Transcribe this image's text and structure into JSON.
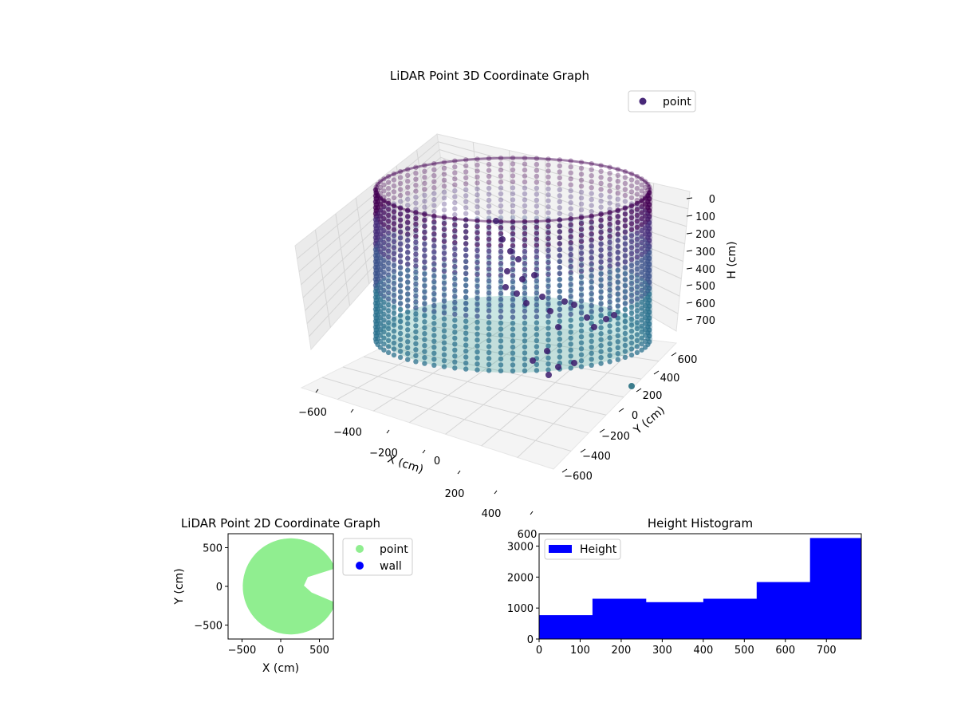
{
  "colors": {
    "viridis_top": "#440154",
    "viridis_mid": "#3b528b",
    "viridis_teal": "#21918c",
    "viridis_green": "#2bb07f",
    "point_2d": "#90ee90",
    "wall_2d": "#0000ff",
    "histogram": "#0000ff",
    "pane": "#f2f2f2"
  },
  "chart_data": [
    {
      "type": "scatter3d",
      "title": "LiDAR Point 3D Coordinate Graph",
      "xlabel": "X (cm)",
      "ylabel": "Y (cm)",
      "zlabel": "H (cm)",
      "xlim": [
        -700,
        700
      ],
      "ylim": [
        -700,
        700
      ],
      "zlim": [
        0,
        780
      ],
      "z_inverted": true,
      "xticks": [
        "−600",
        "−400",
        "−200",
        "0",
        "200",
        "400",
        "600"
      ],
      "yticks": [
        "−600",
        "−400",
        "−200",
        "0",
        "200",
        "400",
        "600"
      ],
      "zticks": [
        "0",
        "100",
        "200",
        "300",
        "400",
        "500",
        "600",
        "700"
      ],
      "legend": [
        "point"
      ],
      "legend_position": "top-right",
      "grid": true,
      "shape": "cylindrical wall of radius ~620 cm, heights 0-780 cm, colored by height",
      "wall_radius": 620,
      "height_range": [
        0,
        780
      ]
    },
    {
      "type": "scatter",
      "title": "LiDAR Point 2D Coordinate Graph",
      "xlabel": "X (cm)",
      "ylabel": "Y (cm)",
      "xlim": [
        -680,
        680
      ],
      "ylim": [
        -680,
        680
      ],
      "xticks": [
        "−500",
        "0",
        "500"
      ],
      "yticks": [
        "500",
        "0",
        "−500"
      ],
      "legend": [
        "point",
        "wall"
      ],
      "legend_position": "outside right",
      "disc_radius": 620,
      "disc_center": [
        130,
        0
      ],
      "notch_angle_range_deg": [
        -20,
        22
      ]
    },
    {
      "type": "histogram",
      "title": "Height Histogram",
      "legend": [
        "Height"
      ],
      "legend_position": "top-left",
      "xlim": [
        0,
        785
      ],
      "ylim": [
        0,
        3400
      ],
      "xticks": [
        "0",
        "100",
        "200",
        "300",
        "400",
        "500",
        "600",
        "700"
      ],
      "yticks": [
        "0",
        "1000",
        "2000",
        "3000"
      ],
      "bins": [
        {
          "x0": 0,
          "x1": 130,
          "count": 770
        },
        {
          "x0": 130,
          "x1": 260,
          "count": 1300
        },
        {
          "x0": 260,
          "x1": 400,
          "count": 1190
        },
        {
          "x0": 400,
          "x1": 530,
          "count": 1300
        },
        {
          "x0": 530,
          "x1": 660,
          "count": 1840
        },
        {
          "x0": 660,
          "x1": 785,
          "count": 3260
        }
      ]
    }
  ]
}
